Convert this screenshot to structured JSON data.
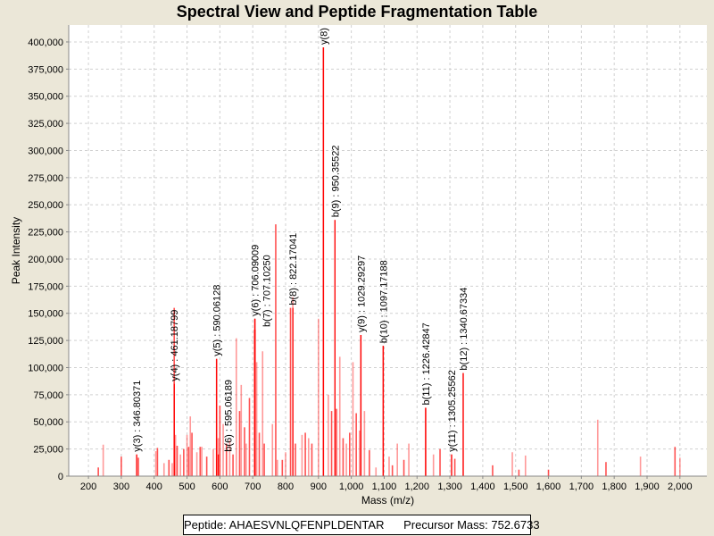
{
  "chart_data": {
    "type": "bar",
    "title": "Spectral View and Peptide Fragmentation Table",
    "xlabel": "Mass (m/z)",
    "ylabel": "Peak Intensity",
    "xlim": [
      140,
      2082
    ],
    "ylim": [
      0,
      415600
    ],
    "grid": true,
    "xticks": [
      200,
      300,
      400,
      500,
      600,
      700,
      800,
      900,
      1000,
      1100,
      1200,
      1300,
      1400,
      1500,
      1600,
      1700,
      1800,
      1900,
      2000
    ],
    "xtick_labels": [
      "200",
      "300",
      "400",
      "500",
      "600",
      "700",
      "800",
      "900",
      "1,000",
      "1,100",
      "1,200",
      "1,300",
      "1,400",
      "1,500",
      "1,600",
      "1,700",
      "1,800",
      "1,900",
      "2,000"
    ],
    "yticks": [
      0,
      25000,
      50000,
      75000,
      100000,
      125000,
      150000,
      175000,
      200000,
      225000,
      250000,
      275000,
      300000,
      325000,
      350000,
      375000,
      400000
    ],
    "ytick_labels": [
      "0",
      "25,000",
      "50,000",
      "75,000",
      "100,000",
      "125,000",
      "150,000",
      "175,000",
      "200,000",
      "225,000",
      "250,000",
      "275,000",
      "300,000",
      "325,000",
      "350,000",
      "375,000",
      "400,000"
    ],
    "peaks": [
      [
        230,
        8000
      ],
      [
        245,
        29000
      ],
      [
        300,
        18000
      ],
      [
        347,
        20000
      ],
      [
        352,
        17000
      ],
      [
        405,
        23000
      ],
      [
        410,
        26000
      ],
      [
        430,
        12000
      ],
      [
        445,
        15000
      ],
      [
        455,
        12000
      ],
      [
        461,
        155000
      ],
      [
        465,
        38000
      ],
      [
        470,
        28000
      ],
      [
        480,
        20000
      ],
      [
        490,
        25000
      ],
      [
        500,
        38000
      ],
      [
        505,
        27000
      ],
      [
        510,
        55000
      ],
      [
        515,
        40000
      ],
      [
        530,
        22000
      ],
      [
        540,
        27000
      ],
      [
        545,
        27000
      ],
      [
        560,
        18000
      ],
      [
        580,
        25000
      ],
      [
        590,
        108000
      ],
      [
        595,
        35000
      ],
      [
        600,
        65000
      ],
      [
        610,
        48000
      ],
      [
        620,
        30000
      ],
      [
        630,
        33000
      ],
      [
        640,
        20000
      ],
      [
        650,
        127000
      ],
      [
        660,
        60000
      ],
      [
        665,
        84000
      ],
      [
        675,
        45000
      ],
      [
        680,
        30000
      ],
      [
        690,
        72000
      ],
      [
        705,
        135000
      ],
      [
        707,
        145000
      ],
      [
        712,
        105000
      ],
      [
        720,
        40000
      ],
      [
        730,
        115000
      ],
      [
        735,
        30000
      ],
      [
        760,
        48000
      ],
      [
        770,
        232000
      ],
      [
        775,
        15000
      ],
      [
        790,
        15000
      ],
      [
        800,
        22000
      ],
      [
        815,
        155000
      ],
      [
        822,
        165000
      ],
      [
        830,
        30000
      ],
      [
        850,
        38000
      ],
      [
        860,
        40000
      ],
      [
        870,
        35000
      ],
      [
        880,
        30000
      ],
      [
        900,
        145000
      ],
      [
        915,
        395000
      ],
      [
        930,
        75000
      ],
      [
        940,
        60000
      ],
      [
        950,
        236000
      ],
      [
        955,
        62000
      ],
      [
        965,
        110000
      ],
      [
        975,
        35000
      ],
      [
        985,
        30000
      ],
      [
        995,
        40000
      ],
      [
        1005,
        105000
      ],
      [
        1015,
        58000
      ],
      [
        1025,
        42000
      ],
      [
        1029,
        130000
      ],
      [
        1040,
        60000
      ],
      [
        1055,
        24000
      ],
      [
        1075,
        8000
      ],
      [
        1097,
        120000
      ],
      [
        1115,
        18000
      ],
      [
        1125,
        10000
      ],
      [
        1140,
        30000
      ],
      [
        1160,
        15000
      ],
      [
        1175,
        30000
      ],
      [
        1226,
        63000
      ],
      [
        1250,
        20000
      ],
      [
        1270,
        25000
      ],
      [
        1305,
        20000
      ],
      [
        1315,
        16000
      ],
      [
        1340,
        95000
      ],
      [
        1430,
        10000
      ],
      [
        1490,
        22000
      ],
      [
        1510,
        6000
      ],
      [
        1530,
        19000
      ],
      [
        1600,
        6000
      ],
      [
        1750,
        52000
      ],
      [
        1775,
        13000
      ],
      [
        1880,
        18000
      ],
      [
        1985,
        27000
      ],
      [
        2000,
        17000
      ]
    ],
    "annotations": [
      {
        "mz": 346.80371,
        "intensity": 20000,
        "label": "y(3) : 346.80371"
      },
      {
        "mz": 461.18799,
        "intensity": 85000,
        "label": "y(4) : 461.18799"
      },
      {
        "mz": 595.06189,
        "intensity": 20000,
        "label": "b(6) : 595.06189"
      },
      {
        "mz": 590.06128,
        "intensity": 108000,
        "label": "y(5) : 590.06128"
      },
      {
        "mz": 707.1025,
        "intensity": 135000,
        "label": "b(7) : 707.10250"
      },
      {
        "mz": 706.09009,
        "intensity": 145000,
        "label": "y(6) : 706.09009"
      },
      {
        "mz": 822.17041,
        "intensity": 155000,
        "label": "b(8) : 822.17041"
      },
      {
        "mz": 915.0,
        "intensity": 395000,
        "label": "y(8)"
      },
      {
        "mz": 950.35522,
        "intensity": 236000,
        "label": "b(9) : 950.35522"
      },
      {
        "mz": 1029.29297,
        "intensity": 130000,
        "label": "y(9) : 1029.29297"
      },
      {
        "mz": 1097.17188,
        "intensity": 120000,
        "label": "b(10) : 1097.17188"
      },
      {
        "mz": 1226.42847,
        "intensity": 63000,
        "label": "b(11) : 1226.42847"
      },
      {
        "mz": 1305.25562,
        "intensity": 20000,
        "label": "y(11) : 1305.25562"
      },
      {
        "mz": 1340.67334,
        "intensity": 95000,
        "label": "b(12) : 1340.67334"
      }
    ],
    "colors": {
      "peak": "#ff3333",
      "annotated": "#ff0000",
      "grid": "#d0d0d0"
    }
  },
  "footer": {
    "text": "Peptide: AHAESVNLQFENPLDENTAR      Precursor Mass: 752.6733"
  }
}
